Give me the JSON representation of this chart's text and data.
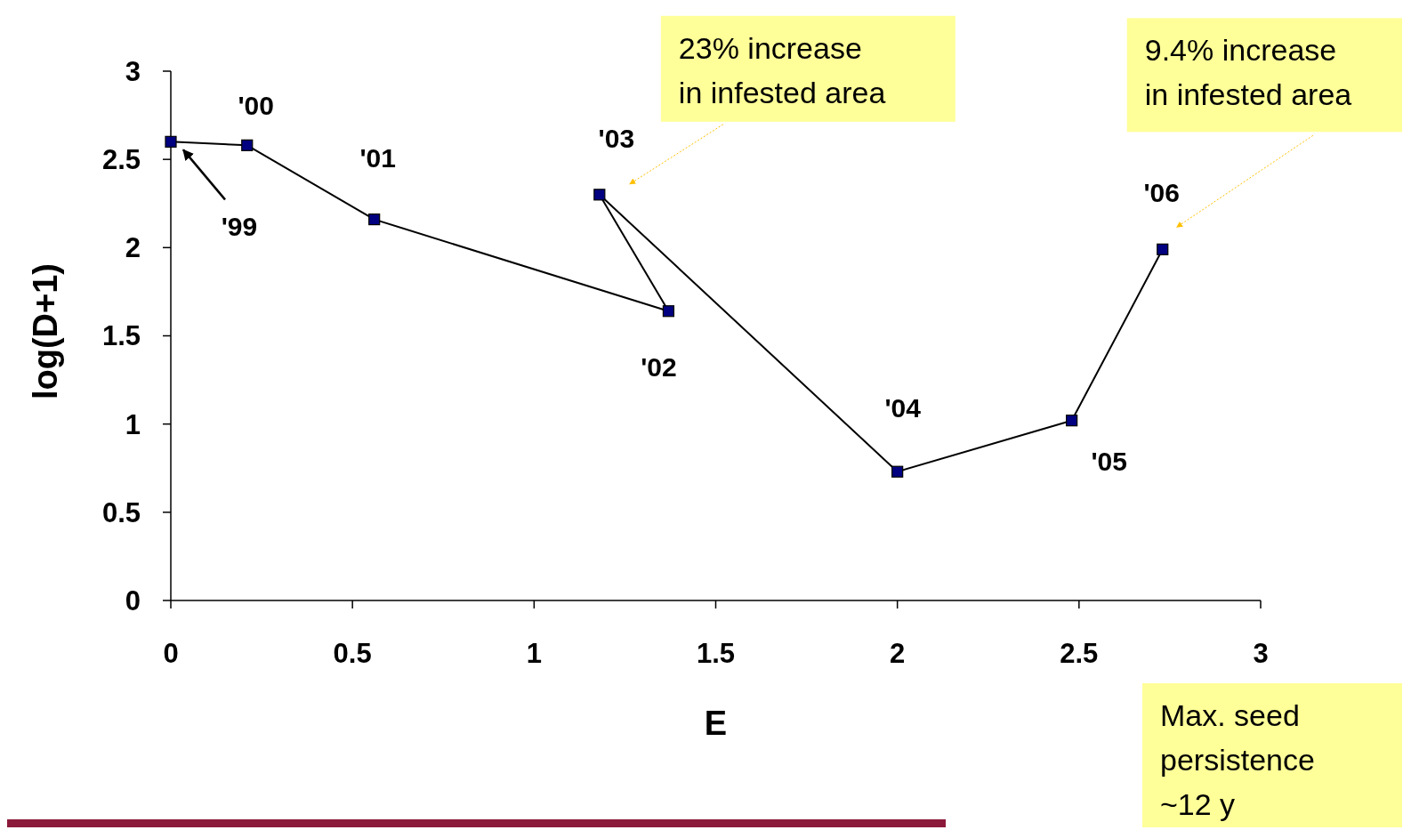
{
  "chart_data": {
    "type": "line",
    "xlabel": "E",
    "ylabel": "log(D+1)",
    "x": [
      0,
      0.21,
      0.56,
      1.37,
      1.18,
      2.0,
      2.48,
      2.73
    ],
    "series": [
      {
        "color": "#000080",
        "values": [
          2.6,
          2.58,
          2.16,
          1.64,
          2.3,
          0.73,
          1.02,
          1.99
        ]
      }
    ],
    "xlim": [
      0,
      3
    ],
    "xticks": [
      0,
      0.5,
      1,
      1.5,
      2,
      2.5,
      3
    ],
    "ylim": [
      0,
      3
    ],
    "yticks": [
      0,
      0.5,
      1,
      1.5,
      2,
      2.5,
      3
    ],
    "marker": "square",
    "grid": false,
    "annotations": [
      "'99",
      {
        "text": "'00",
        "x": 0.21,
        "y": 2.58
      },
      {
        "text": "'01",
        "x": 0.56,
        "y": 2.16
      },
      {
        "text": "'02",
        "x": 1.37,
        "y": 1.64
      },
      {
        "text": "'03",
        "x": 1.18,
        "y": 2.3
      },
      {
        "text": "'04",
        "x": 2.0,
        "y": 0.73
      },
      {
        "text": "'05",
        "x": 2.48,
        "y": 1.02
      },
      {
        "text": "'06",
        "x": 2.73,
        "y": 1.99
      },
      "23% increase\nin infested area",
      "9.4% increase\nin infested area",
      "Max. seed\npersistence\n~12 y"
    ]
  }
}
